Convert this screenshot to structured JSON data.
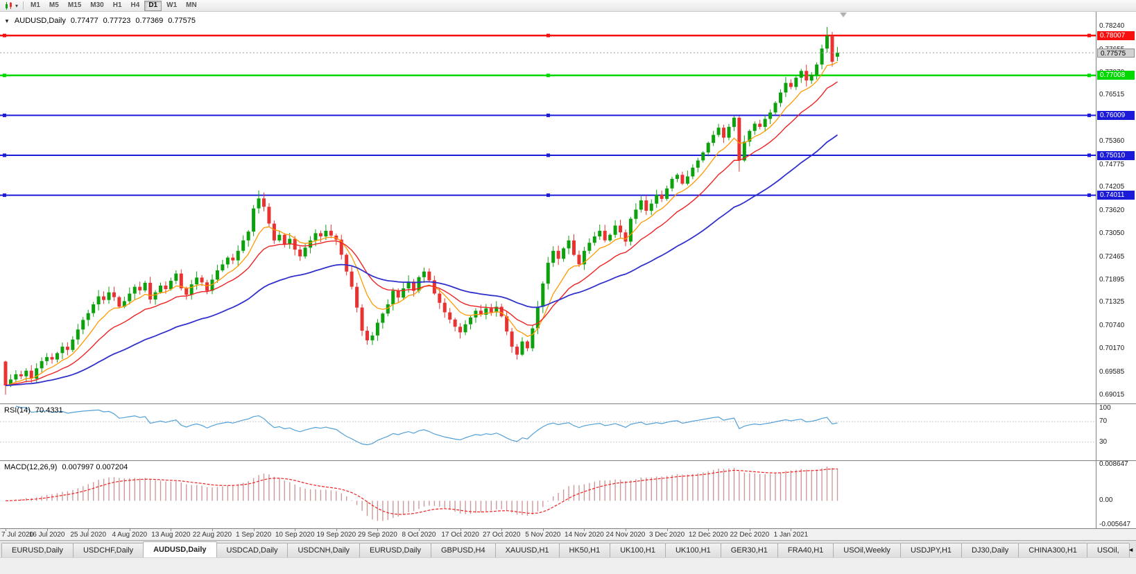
{
  "toolbar": {
    "chart_icon": "candlestick-chart-icon",
    "chevron_down": "▾",
    "timeframes": [
      "M1",
      "M5",
      "M15",
      "M30",
      "H1",
      "H4",
      "D1",
      "W1",
      "MN"
    ],
    "active_timeframe": "D1"
  },
  "chart": {
    "title": "AUDUSD,Daily",
    "one_click_icon": "▼",
    "ohlc": {
      "open": "0.77477",
      "high": "0.77723",
      "low": "0.77369",
      "close": "0.77575"
    },
    "price_axis": {
      "ticks": [
        "0.78240",
        "0.77655",
        "0.77070",
        "0.76515",
        "0.75930",
        "0.75360",
        "0.74775",
        "0.74205",
        "0.73620",
        "0.73050",
        "0.72465",
        "0.71895",
        "0.71325",
        "0.70740",
        "0.70170",
        "0.69585",
        "0.69015"
      ]
    },
    "levels": [
      {
        "label": "0.78007",
        "value": 0.78007,
        "color": "#f50f0f",
        "width": 2.5,
        "type": "resistance-line"
      },
      {
        "label": "0.77008",
        "value": 0.77008,
        "color": "#00d800",
        "width": 2.5,
        "type": "support-line"
      },
      {
        "label": "0.76009",
        "value": 0.76009,
        "color": "#1a1ad8",
        "width": 2,
        "type": "support-line"
      },
      {
        "label": "0.75010",
        "value": 0.7501,
        "color": "#1a1ad8",
        "width": 2,
        "type": "support-line"
      },
      {
        "label": "0.74011",
        "value": 0.74011,
        "color": "#1a1ad8",
        "width": 2,
        "type": "support-line"
      }
    ],
    "current_price": {
      "label": "0.77575",
      "value": 0.77575
    }
  },
  "chart_data": {
    "type": "candlestick",
    "symbol": "AUDUSD",
    "period": "Daily",
    "y_range": {
      "min": 0.688,
      "max": 0.786
    },
    "x_labels": [
      {
        "label": "7 Jul 2020",
        "bar": 0
      },
      {
        "label": "16 Jul 2020",
        "bar": 8
      },
      {
        "label": "25 Jul 2020",
        "bar": 16
      },
      {
        "label": "4 Aug 2020",
        "bar": 24
      },
      {
        "label": "13 Aug 2020",
        "bar": 32
      },
      {
        "label": "22 Aug 2020",
        "bar": 40
      },
      {
        "label": "1 Sep 2020",
        "bar": 48
      },
      {
        "label": "10 Sep 2020",
        "bar": 56
      },
      {
        "label": "19 Sep 2020",
        "bar": 64
      },
      {
        "label": "29 Sep 2020",
        "bar": 72
      },
      {
        "label": "8 Oct 2020",
        "bar": 80
      },
      {
        "label": "17 Oct 2020",
        "bar": 88
      },
      {
        "label": "27 Oct 2020",
        "bar": 96
      },
      {
        "label": "5 Nov 2020",
        "bar": 104
      },
      {
        "label": "14 Nov 2020",
        "bar": 112
      },
      {
        "label": "24 Nov 2020",
        "bar": 120
      },
      {
        "label": "3 Dec 2020",
        "bar": 128
      },
      {
        "label": "12 Dec 2020",
        "bar": 136
      },
      {
        "label": "22 Dec 2020",
        "bar": 144
      },
      {
        "label": "1 Jan 2021",
        "bar": 152
      }
    ],
    "closes": [
      0.6925,
      0.694,
      0.6953,
      0.6948,
      0.6962,
      0.6942,
      0.6968,
      0.6986,
      0.6996,
      0.699,
      0.7006,
      0.7022,
      0.7014,
      0.704,
      0.7065,
      0.7089,
      0.7106,
      0.7128,
      0.7148,
      0.7139,
      0.7158,
      0.7146,
      0.7122,
      0.7136,
      0.7155,
      0.7172,
      0.7163,
      0.7182,
      0.714,
      0.7158,
      0.7175,
      0.7166,
      0.7187,
      0.7205,
      0.7168,
      0.7152,
      0.7178,
      0.7195,
      0.7183,
      0.7162,
      0.719,
      0.7213,
      0.7228,
      0.7245,
      0.7238,
      0.7262,
      0.7288,
      0.731,
      0.7368,
      0.7393,
      0.7372,
      0.733,
      0.7288,
      0.7302,
      0.7278,
      0.7292,
      0.7265,
      0.7248,
      0.727,
      0.7288,
      0.7306,
      0.7298,
      0.7312,
      0.73,
      0.729,
      0.7252,
      0.721,
      0.7172,
      0.712,
      0.7062,
      0.7038,
      0.705,
      0.7082,
      0.7105,
      0.7128,
      0.7162,
      0.7145,
      0.7168,
      0.7185,
      0.7162,
      0.7196,
      0.721,
      0.7188,
      0.7155,
      0.7132,
      0.7108,
      0.709,
      0.7072,
      0.7058,
      0.7078,
      0.7095,
      0.7112,
      0.7102,
      0.7118,
      0.7108,
      0.7122,
      0.7098,
      0.706,
      0.7022,
      0.7002,
      0.7035,
      0.7018,
      0.7068,
      0.7122,
      0.718,
      0.7232,
      0.7262,
      0.7242,
      0.7268,
      0.7288,
      0.7252,
      0.7228,
      0.7262,
      0.7282,
      0.7298,
      0.7312,
      0.7288,
      0.7302,
      0.7325,
      0.7308,
      0.7285,
      0.7342,
      0.7365,
      0.7388,
      0.7362,
      0.738,
      0.7402,
      0.7392,
      0.7418,
      0.7442,
      0.7452,
      0.743,
      0.7448,
      0.747,
      0.7488,
      0.7508,
      0.7532,
      0.7552,
      0.757,
      0.7545,
      0.7572,
      0.7595,
      0.7488,
      0.7535,
      0.7562,
      0.758,
      0.7572,
      0.7592,
      0.7608,
      0.7632,
      0.7658,
      0.7682,
      0.7672,
      0.7695,
      0.7712,
      0.7688,
      0.7702,
      0.7728,
      0.7768,
      0.78,
      0.7735,
      0.77575
    ],
    "overrides": {
      "0": {
        "open": 0.6985,
        "low": 0.6902
      },
      "49": {
        "high": 0.7413
      },
      "99": {
        "low": 0.699
      },
      "142": {
        "low": 0.746
      },
      "159": {
        "high": 0.7822
      },
      "161": {
        "open": 0.77477,
        "high": 0.77723,
        "low": 0.77369,
        "close": 0.77575
      }
    },
    "colors": {
      "up": "#0da10d",
      "down": "#e93232"
    },
    "moving_averages": [
      {
        "name": "fast-ma",
        "period": 8,
        "color": "#ff9900",
        "width": 1.3
      },
      {
        "name": "medium-ma",
        "period": 17,
        "color": "#ee2222",
        "width": 1.4
      },
      {
        "name": "slow-ma",
        "period": 45,
        "color": "#3030cc",
        "width": 1.8
      }
    ]
  },
  "rsi": {
    "name": "RSI(14)",
    "value": "70.4331",
    "period": 14,
    "axis_labels": [
      "100",
      "70",
      "30"
    ],
    "levels_dashed": [
      70,
      30
    ],
    "color": "#52a0d8"
  },
  "macd": {
    "name": "MACD(12,26,9)",
    "values": "0.007997 0.007204",
    "fast": 12,
    "slow": 26,
    "signal_period": 9,
    "axis_labels": [
      "0.008647",
      "0.00",
      "-0.005647"
    ],
    "scale": {
      "max": 0.0092,
      "min": -0.0062
    },
    "hist_color": "#cc9999",
    "signal_color": "#ef2020"
  },
  "tabs": {
    "items": [
      "EURUSD,Daily",
      "USDCHF,Daily",
      "AUDUSD,Daily",
      "USDCAD,Daily",
      "USDCNH,Daily",
      "EURUSD,Daily",
      "GBPUSD,H4",
      "XAUUSD,H1",
      "HK50,H1",
      "UK100,H1",
      "UK100,H1",
      "GER30,H1",
      "FRA40,H1",
      "USOil,Weekly",
      "USDJPY,H1",
      "DJ30,Daily",
      "CHINA300,H1",
      "USOil,"
    ],
    "active_index": 2,
    "scroll_icon": "◄"
  }
}
